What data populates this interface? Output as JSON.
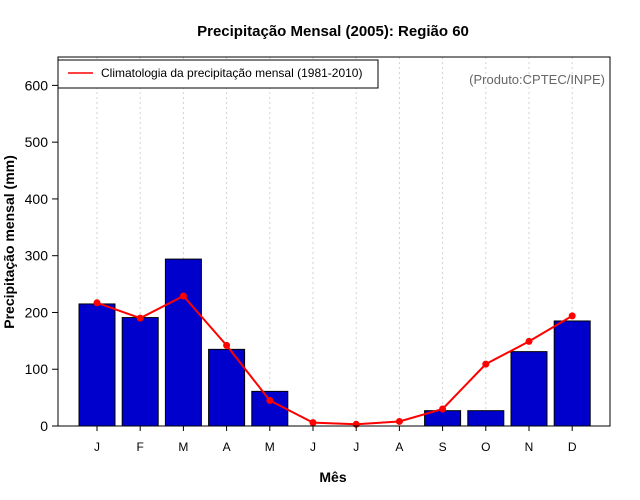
{
  "chart_data": {
    "type": "bar",
    "title": "Precipitação Mensal (2005): Região 60",
    "xlabel": "Mês",
    "ylabel": "Precipitação mensal (mm)",
    "ylim": [
      0,
      650
    ],
    "yticks": [
      0,
      100,
      200,
      300,
      400,
      500,
      600
    ],
    "grid": "vertical dotted",
    "categories": [
      "J",
      "F",
      "M",
      "A",
      "M",
      "J",
      "J",
      "A",
      "S",
      "O",
      "N",
      "D"
    ],
    "series": [
      {
        "name": "Precipitação mensal 2005",
        "type": "bar",
        "color": "#0000CD",
        "values": [
          215,
          191,
          294,
          135,
          61,
          0,
          0,
          0,
          27,
          27,
          131,
          185
        ]
      },
      {
        "name": "Climatologia da precipitação mensal (1981-2010)",
        "type": "line",
        "color": "#FF0000",
        "values": [
          217,
          190,
          229,
          142,
          45,
          6,
          3,
          8,
          30,
          109,
          149,
          194
        ]
      }
    ],
    "legend": {
      "position": "top-left",
      "entries": [
        "Climatologia da precipitação mensal (1981-2010)"
      ]
    },
    "annotation": "(Produto:CPTEC/INPE)"
  }
}
